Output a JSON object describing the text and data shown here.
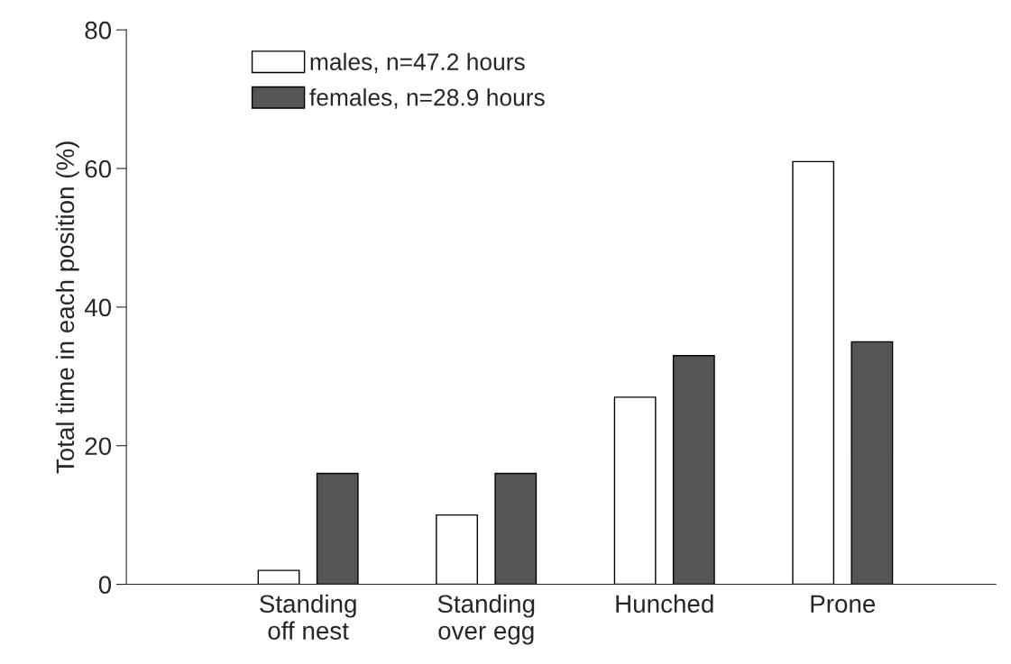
{
  "chart_data": {
    "type": "bar",
    "ylabel": "Total time in each position (%)",
    "categories": [
      "Standing\noff nest",
      "Standing\nover egg",
      "Hunched",
      "Prone"
    ],
    "series": [
      {
        "name": "males, n=47.2 hours",
        "color": "#ffffff",
        "values": [
          2,
          10,
          27,
          61
        ]
      },
      {
        "name": "females, n=28.9 hours",
        "color": "#555555",
        "values": [
          16,
          16,
          33,
          35
        ]
      }
    ],
    "ylim": [
      0,
      80
    ],
    "yticks": [
      0,
      20,
      40,
      60,
      80
    ],
    "grid": false,
    "legend": "top left"
  }
}
